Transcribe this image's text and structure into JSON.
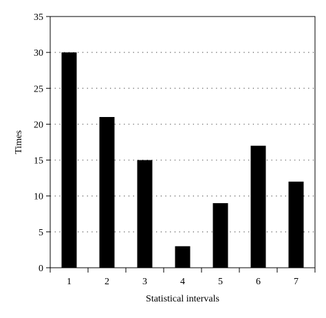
{
  "chart_data": {
    "type": "bar",
    "categories": [
      "1",
      "2",
      "3",
      "4",
      "5",
      "6",
      "7"
    ],
    "values": [
      30,
      21,
      15,
      3,
      9,
      17,
      12
    ],
    "title": "",
    "xlabel": "Statistical intervals",
    "ylabel": "Times",
    "ylim": [
      0,
      35
    ],
    "yticks": [
      0,
      5,
      10,
      15,
      20,
      25,
      30,
      35
    ],
    "grid": "horizontal dotted",
    "legend": "none",
    "bar_color": "#000000",
    "axis_color": "#000000",
    "grid_color": "#555555"
  }
}
